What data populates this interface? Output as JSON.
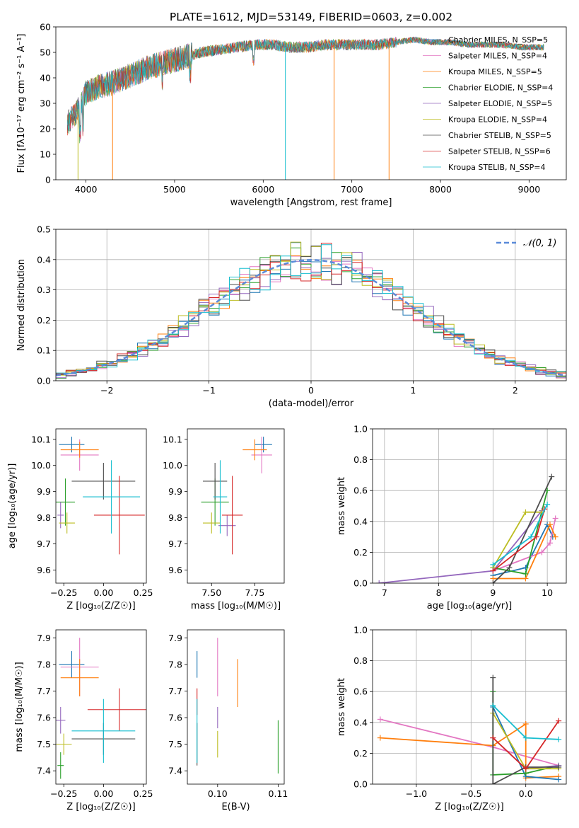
{
  "chart_data": [
    {
      "type": "line",
      "title": "PLATE=1612, MJD=53149, FIBERID=0603, z=0.002",
      "xlabel": "wavelength [Angstrom, rest frame]",
      "ylabel": "Flux [fλ10⁻¹⁷ erg cm⁻² s⁻¹ A⁻¹]",
      "xlim": [
        3660,
        9420
      ],
      "ylim": [
        0,
        60
      ],
      "xticks": [
        4000,
        5000,
        6000,
        7000,
        8000,
        9000
      ],
      "yticks": [
        0,
        10,
        20,
        30,
        40,
        50,
        60
      ],
      "grid": false,
      "legend": "right",
      "series": [
        {
          "name": "Chabrier MILES, N_SSP=5",
          "color": "#1f77b4"
        },
        {
          "name": "Salpeter MILES, N_SSP=4",
          "color": "#e377c2"
        },
        {
          "name": "Kroupa MILES, N_SSP=5",
          "color": "#ff7f0e"
        },
        {
          "name": "Chabrier ELODIE, N_SSP=4",
          "color": "#2ca02c"
        },
        {
          "name": "Salpeter ELODIE, N_SSP=5",
          "color": "#9467bd"
        },
        {
          "name": "Kroupa ELODIE, N_SSP=4",
          "color": "#bcbd22"
        },
        {
          "name": "Chabrier STELIB, N_SSP=5",
          "color": "#4d4d4d"
        },
        {
          "name": "Salpeter STELIB, N_SSP=6",
          "color": "#d62728"
        },
        {
          "name": "Kroupa STELIB, N_SSP=4",
          "color": "#17becf"
        }
      ],
      "continuum": {
        "x": [
          3790,
          3900,
          4000,
          4100,
          4300,
          4500,
          4700,
          4900,
          5100,
          5300,
          5500,
          5700,
          5900,
          6100,
          6300,
          6500,
          6700,
          6900,
          7100,
          7300,
          7500,
          7700,
          7900,
          8100,
          8300,
          8500,
          8700,
          8900,
          9100,
          9170
        ],
        "y": [
          22,
          27,
          34,
          36,
          38,
          41,
          44,
          46,
          48,
          50,
          51,
          52,
          53,
          53,
          52,
          52,
          53,
          53,
          53,
          53,
          54,
          55,
          54,
          54,
          53,
          53,
          53,
          52,
          52,
          52
        ]
      },
      "drops": [
        {
          "x": 3910,
          "color": "#bcbd22"
        },
        {
          "x": 4300,
          "color": "#ff7f0e"
        },
        {
          "x": 6250,
          "color": "#17becf"
        },
        {
          "x": 6800,
          "color": "#ff7f0e"
        },
        {
          "x": 7420,
          "color": "#ff7f0e"
        }
      ]
    },
    {
      "type": "step",
      "xlabel": "(data-model)/error",
      "ylabel": "Normed distribution",
      "xlim": [
        -2.5,
        2.5
      ],
      "ylim": [
        0,
        0.5
      ],
      "xticks": [
        -2,
        -1,
        0,
        1,
        2
      ],
      "yticks": [
        0.0,
        0.1,
        0.2,
        0.3,
        0.4,
        0.5
      ],
      "grid": true,
      "legend": "top-right",
      "reference": {
        "name": "𝒩(0, 1)",
        "color": "#5b8bd9",
        "mean": 0,
        "sigma": 1
      },
      "bin_width": 0.1,
      "series_colors": [
        "#1f77b4",
        "#e377c2",
        "#ff7f0e",
        "#2ca02c",
        "#9467bd",
        "#bcbd22",
        "#4d4d4d",
        "#d62728",
        "#17becf"
      ]
    },
    {
      "type": "errorbar",
      "xlabel": "Z [log₁₀(Z/Z☉)]",
      "ylabel": "age  [log₁₀(age/yr)]",
      "xlim": [
        -0.3,
        0.27
      ],
      "ylim": [
        9.55,
        10.14
      ],
      "xticks": [
        -0.25,
        0.0,
        0.25
      ],
      "yticks": [
        9.6,
        9.7,
        9.8,
        9.9,
        10.0,
        10.1
      ],
      "grid": false,
      "points": [
        {
          "color": "#1f77b4",
          "x": -0.2,
          "xerr": 0.08,
          "y": 10.08,
          "yerr": 0.03
        },
        {
          "color": "#e377c2",
          "x": -0.15,
          "xerr": 0.12,
          "y": 10.04,
          "yerr": 0.06
        },
        {
          "color": "#ff7f0e",
          "x": -0.15,
          "xerr": 0.12,
          "y": 10.06,
          "yerr": 0.03
        },
        {
          "color": "#2ca02c",
          "x": -0.24,
          "xerr": 0.06,
          "y": 9.86,
          "yerr": 0.09
        },
        {
          "color": "#9467bd",
          "x": -0.27,
          "xerr": 0.02,
          "y": 9.81,
          "yerr": 0.05
        },
        {
          "color": "#bcbd22",
          "x": -0.23,
          "xerr": 0.05,
          "y": 9.78,
          "yerr": 0.04
        },
        {
          "color": "#4d4d4d",
          "x": 0.0,
          "xerr": 0.2,
          "y": 9.94,
          "yerr": 0.07
        },
        {
          "color": "#d62728",
          "x": 0.1,
          "xerr": 0.16,
          "y": 9.81,
          "yerr": 0.15
        },
        {
          "color": "#17becf",
          "x": 0.05,
          "xerr": 0.18,
          "y": 9.88,
          "yerr": 0.14
        }
      ]
    },
    {
      "type": "errorbar",
      "xlabel": "mass [log₁₀(M/M☉)]",
      "ylabel": "",
      "xlim": [
        7.36,
        7.92
      ],
      "ylim": [
        9.55,
        10.14
      ],
      "xticks": [
        7.5,
        7.75
      ],
      "yticks": [
        9.6,
        9.7,
        9.8,
        9.9,
        10.0,
        10.1
      ],
      "grid": false,
      "points": [
        {
          "color": "#1f77b4",
          "x": 7.8,
          "xerr": 0.05,
          "y": 10.08,
          "yerr": 0.03
        },
        {
          "color": "#e377c2",
          "x": 7.79,
          "xerr": 0.06,
          "y": 10.04,
          "yerr": 0.07
        },
        {
          "color": "#ff7f0e",
          "x": 7.75,
          "xerr": 0.07,
          "y": 10.06,
          "yerr": 0.04
        },
        {
          "color": "#2ca02c",
          "x": 7.52,
          "xerr": 0.08,
          "y": 9.86,
          "yerr": 0.09
        },
        {
          "color": "#9467bd",
          "x": 7.59,
          "xerr": 0.05,
          "y": 9.77,
          "yerr": 0.04
        },
        {
          "color": "#bcbd22",
          "x": 7.5,
          "xerr": 0.05,
          "y": 9.78,
          "yerr": 0.04
        },
        {
          "color": "#4d4d4d",
          "x": 7.52,
          "xerr": 0.07,
          "y": 9.94,
          "yerr": 0.07
        },
        {
          "color": "#d62728",
          "x": 7.62,
          "xerr": 0.06,
          "y": 9.81,
          "yerr": 0.15
        },
        {
          "color": "#17becf",
          "x": 7.55,
          "xerr": 0.04,
          "y": 9.88,
          "yerr": 0.14
        }
      ]
    },
    {
      "type": "line",
      "xlabel": "age  [log₁₀(age/yr)]",
      "ylabel": "mass weight",
      "xlim": [
        6.78,
        10.35
      ],
      "ylim": [
        0,
        1.0
      ],
      "xticks": [
        7,
        8,
        9,
        10
      ],
      "yticks": [
        0.0,
        0.2,
        0.4,
        0.6,
        0.8,
        1.0
      ],
      "grid": true,
      "series": [
        {
          "color": "#1f77b4",
          "x": [
            9.0,
            9.6,
            10.0,
            10.1
          ],
          "y": [
            0.05,
            0.1,
            0.38,
            0.3
          ]
        },
        {
          "color": "#e377c2",
          "x": [
            9.0,
            9.9,
            10.05,
            10.15
          ],
          "y": [
            0.08,
            0.2,
            0.26,
            0.42
          ]
        },
        {
          "color": "#ff7f0e",
          "x": [
            9.0,
            9.6,
            10.05,
            10.15
          ],
          "y": [
            0.03,
            0.03,
            0.38,
            0.3
          ]
        },
        {
          "color": "#2ca02c",
          "x": [
            9.0,
            9.6,
            10.0
          ],
          "y": [
            0.1,
            0.06,
            0.6
          ]
        },
        {
          "color": "#9467bd",
          "x": [
            6.9,
            9.0,
            9.9
          ],
          "y": [
            0.0,
            0.08,
            0.47
          ]
        },
        {
          "color": "#bcbd22",
          "x": [
            9.0,
            9.6,
            9.9
          ],
          "y": [
            0.1,
            0.46,
            0.46
          ]
        },
        {
          "color": "#4d4d4d",
          "x": [
            9.0,
            9.3,
            10.08
          ],
          "y": [
            0.0,
            0.1,
            0.69
          ]
        },
        {
          "color": "#d62728",
          "x": [
            9.0,
            9.8,
            9.95
          ],
          "y": [
            0.08,
            0.3,
            0.48
          ]
        },
        {
          "color": "#17becf",
          "x": [
            9.0,
            9.7,
            10.0
          ],
          "y": [
            0.12,
            0.3,
            0.51
          ]
        }
      ]
    },
    {
      "type": "errorbar",
      "xlabel": "Z [log₁₀(Z/Z☉)]",
      "ylabel": "mass [log₁₀(M/M☉)]",
      "xlim": [
        -0.3,
        0.27
      ],
      "ylim": [
        7.35,
        7.93
      ],
      "xticks": [
        -0.25,
        0.0,
        0.25
      ],
      "yticks": [
        7.4,
        7.5,
        7.6,
        7.7,
        7.8,
        7.9
      ],
      "grid": false,
      "points": [
        {
          "color": "#1f77b4",
          "x": -0.2,
          "xerr": 0.08,
          "y": 7.8,
          "yerr": 0.05
        },
        {
          "color": "#e377c2",
          "x": -0.15,
          "xerr": 0.12,
          "y": 7.79,
          "yerr": 0.11
        },
        {
          "color": "#ff7f0e",
          "x": -0.15,
          "xerr": 0.12,
          "y": 7.75,
          "yerr": 0.07
        },
        {
          "color": "#2ca02c",
          "x": -0.27,
          "xerr": 0.02,
          "y": 7.42,
          "yerr": 0.05
        },
        {
          "color": "#9467bd",
          "x": -0.27,
          "xerr": 0.03,
          "y": 7.59,
          "yerr": 0.05
        },
        {
          "color": "#bcbd22",
          "x": -0.25,
          "xerr": 0.05,
          "y": 7.5,
          "yerr": 0.04
        },
        {
          "color": "#4d4d4d",
          "x": 0.0,
          "xerr": 0.2,
          "y": 7.52,
          "yerr": 0.06
        },
        {
          "color": "#d62728",
          "x": 0.1,
          "xerr": 0.2,
          "y": 7.63,
          "yerr": 0.08
        },
        {
          "color": "#17becf",
          "x": 0.0,
          "xerr": 0.2,
          "y": 7.55,
          "yerr": 0.12
        }
      ]
    },
    {
      "type": "errorbar",
      "xlabel": "E(B-V)",
      "ylabel": "",
      "xlim": [
        0.095,
        0.111
      ],
      "ylim": [
        7.35,
        7.93
      ],
      "xticks": [
        0.1,
        0.11
      ],
      "yticks": [
        7.4,
        7.5,
        7.6,
        7.7,
        7.8,
        7.9
      ],
      "grid": false,
      "points": [
        {
          "color": "#1f77b4",
          "x": 0.0966,
          "xerr": 0,
          "y": 7.8,
          "yerr": 0.05
        },
        {
          "color": "#e377c2",
          "x": 0.1,
          "xerr": 0,
          "y": 7.79,
          "yerr": 0.11
        },
        {
          "color": "#ff7f0e",
          "x": 0.1033,
          "xerr": 0,
          "y": 7.73,
          "yerr": 0.09
        },
        {
          "color": "#2ca02c",
          "x": 0.11,
          "xerr": 0,
          "y": 7.49,
          "yerr": 0.1
        },
        {
          "color": "#9467bd",
          "x": 0.1,
          "xerr": 0,
          "y": 7.6,
          "yerr": 0.04
        },
        {
          "color": "#bcbd22",
          "x": 0.1,
          "xerr": 0,
          "y": 7.5,
          "yerr": 0.05
        },
        {
          "color": "#4d4d4d",
          "x": 0.0966,
          "xerr": 0,
          "y": 7.5,
          "yerr": 0.08
        },
        {
          "color": "#d62728",
          "x": 0.0966,
          "xerr": 0,
          "y": 7.66,
          "yerr": 0.05
        },
        {
          "color": "#17becf",
          "x": 0.0966,
          "xerr": 0,
          "y": 7.55,
          "yerr": 0.12
        }
      ]
    },
    {
      "type": "line",
      "xlabel": "Z [log₁₀(Z/Z☉)]",
      "ylabel": "mass weight",
      "xlim": [
        -1.4,
        0.37
      ],
      "ylim": [
        0,
        1.0
      ],
      "xticks": [
        -1.0,
        -0.5,
        0.0
      ],
      "yticks": [
        0.0,
        0.2,
        0.4,
        0.6,
        0.8,
        1.0
      ],
      "grid": true,
      "series": [
        {
          "color": "#e377c2",
          "x": [
            -1.33,
            -0.3,
            0.3
          ],
          "y": [
            0.42,
            0.24,
            0.12
          ]
        },
        {
          "color": "#ff7f0e",
          "x": [
            -1.33,
            -0.3,
            0.0,
            0.0,
            0.3
          ],
          "y": [
            0.3,
            0.25,
            0.39,
            0.04,
            0.05
          ]
        },
        {
          "color": "#1f77b4",
          "x": [
            -0.3,
            0.0,
            0.3
          ],
          "y": [
            0.5,
            0.05,
            0.03
          ]
        },
        {
          "color": "#2ca02c",
          "x": [
            -0.3,
            -0.3,
            0.0,
            0.3
          ],
          "y": [
            0.6,
            0.06,
            0.07,
            0.12
          ]
        },
        {
          "color": "#9467bd",
          "x": [
            -0.3,
            0.0,
            0.3
          ],
          "y": [
            0.3,
            0.1,
            0.12
          ]
        },
        {
          "color": "#bcbd22",
          "x": [
            -0.3,
            0.0,
            0.3
          ],
          "y": [
            0.46,
            0.1,
            0.1
          ]
        },
        {
          "color": "#4d4d4d",
          "x": [
            -0.3,
            -0.3,
            0.0,
            0.3
          ],
          "y": [
            0.69,
            0.0,
            0.11,
            0.11
          ]
        },
        {
          "color": "#d62728",
          "x": [
            -0.3,
            0.0,
            0.3
          ],
          "y": [
            0.3,
            0.1,
            0.41
          ]
        },
        {
          "color": "#17becf",
          "x": [
            -0.3,
            0.0,
            0.3
          ],
          "y": [
            0.51,
            0.3,
            0.29
          ]
        }
      ]
    }
  ]
}
